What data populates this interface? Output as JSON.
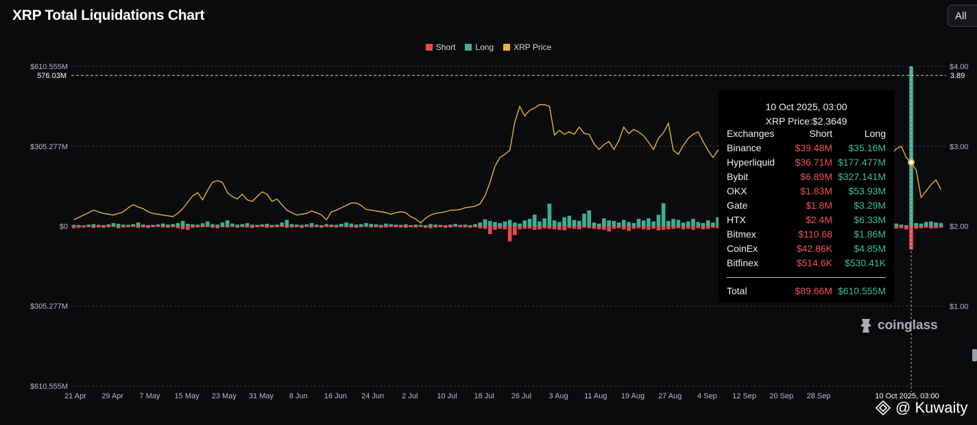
{
  "header": {
    "title": "XRP Total Liquidations Chart",
    "range_label": "All"
  },
  "legend": [
    {
      "label": "Short",
      "color": "#e5484d"
    },
    {
      "label": "Long",
      "color": "#3fae8f"
    },
    {
      "label": "XRP Price",
      "color": "#e8b53c"
    }
  ],
  "chart_data": {
    "type": "bar",
    "left_axis": {
      "ticks": [
        {
          "value": 610.555,
          "label": "$610.555M"
        },
        {
          "value": 305.277,
          "label": "$305.277M"
        },
        {
          "value": 0,
          "label": "$0"
        },
        {
          "value": -305.277,
          "label": "$305.277M"
        },
        {
          "value": -610.555,
          "label": "$610.555M"
        }
      ],
      "range": [
        -610.555,
        610.555
      ],
      "unit": "M USD",
      "marker_label": "576.03M",
      "marker_value": 576.03
    },
    "right_axis": {
      "ticks": [
        {
          "value": 4.0,
          "label": "$4.00"
        },
        {
          "value": 3.0,
          "label": "$3.00"
        },
        {
          "value": 2.0,
          "label": "$2.00"
        },
        {
          "value": 1.0,
          "label": "$1.00"
        }
      ],
      "range": [
        0,
        4
      ],
      "marker_label": "3.89",
      "marker_value": 3.89
    },
    "x_ticks": [
      "21 Apr",
      "29 Apr",
      "7 May",
      "15 May",
      "23 May",
      "31 May",
      "8 Jun",
      "16 Jun",
      "24 Jun",
      "2 Jul",
      "10 Jul",
      "18 Jul",
      "26 Jul",
      "3 Aug",
      "11 Aug",
      "19 Aug",
      "27 Aug",
      "4 Sep",
      "12 Sep",
      "20 Sep",
      "28 Sep",
      "10 Oct 2025, 03:00"
    ],
    "highlight_label": "10 Oct 2025, 03:00",
    "highlight_index": 169,
    "series": [
      {
        "name": "Long",
        "values": [
          5,
          4,
          3,
          6,
          8,
          5,
          4,
          7,
          12,
          9,
          6,
          5,
          8,
          14,
          6,
          4,
          5,
          7,
          10,
          6,
          8,
          12,
          20,
          9,
          7,
          6,
          11,
          18,
          8,
          6,
          14,
          22,
          10,
          6,
          8,
          12,
          6,
          5,
          7,
          9,
          5,
          6,
          14,
          24,
          8,
          6,
          5,
          7,
          12,
          6,
          4,
          8,
          6,
          5,
          9,
          14,
          10,
          6,
          8,
          12,
          9,
          7,
          5,
          10,
          8,
          6,
          5,
          7,
          4,
          6,
          5,
          4,
          8,
          6,
          5,
          4,
          6,
          9,
          5,
          6,
          4,
          8,
          14,
          26,
          20,
          16,
          12,
          18,
          24,
          14,
          10,
          22,
          28,
          44,
          18,
          30,
          86,
          22,
          16,
          34,
          40,
          24,
          20,
          48,
          60,
          14,
          10,
          30,
          22,
          20,
          14,
          24,
          16,
          12,
          28,
          22,
          30,
          18,
          44,
          88,
          20,
          28,
          24,
          14,
          18,
          28,
          16,
          12,
          22,
          14,
          34,
          20,
          12,
          18,
          14,
          16,
          12,
          20,
          26,
          14,
          8,
          10,
          12,
          16,
          18,
          12,
          34,
          16,
          12,
          22,
          10,
          14,
          8,
          18,
          12,
          26,
          14,
          10,
          6,
          8,
          12,
          10,
          14,
          12,
          18,
          8,
          10,
          6,
          4,
          610.555,
          12,
          10,
          16,
          18,
          14,
          12
        ]
      },
      {
        "name": "Short",
        "values": [
          8,
          6,
          5,
          4,
          7,
          5,
          6,
          4,
          3,
          8,
          5,
          4,
          3,
          6,
          5,
          7,
          4,
          3,
          5,
          6,
          4,
          8,
          12,
          14,
          6,
          5,
          4,
          3,
          6,
          8,
          4,
          5,
          3,
          6,
          4,
          5,
          7,
          4,
          3,
          6,
          5,
          4,
          3,
          6,
          5,
          4,
          7,
          3,
          5,
          4,
          6,
          3,
          4,
          5,
          3,
          4,
          5,
          6,
          4,
          3,
          5,
          4,
          6,
          5,
          3,
          4,
          5,
          6,
          4,
          5,
          3,
          6,
          8,
          5,
          4,
          6,
          5,
          3,
          4,
          5,
          6,
          4,
          8,
          10,
          30,
          14,
          10,
          12,
          58,
          34,
          12,
          10,
          9,
          14,
          12,
          8,
          10,
          12,
          14,
          16,
          8,
          10,
          12,
          6,
          8,
          10,
          12,
          14,
          20,
          10,
          8,
          12,
          18,
          10,
          8,
          12,
          14,
          10,
          16,
          14,
          12,
          10,
          8,
          12,
          10,
          14,
          8,
          12,
          10,
          6,
          8,
          12,
          10,
          8,
          6,
          9,
          12,
          14,
          8,
          6,
          10,
          8,
          12,
          9,
          8,
          6,
          10,
          12,
          8,
          6,
          10,
          8,
          6,
          9,
          12,
          8,
          6,
          10,
          9,
          8,
          6,
          12,
          10,
          8,
          6,
          10,
          9,
          8,
          12,
          89.66,
          10,
          8,
          6,
          9,
          8,
          6
        ]
      },
      {
        "name": "XRP Price",
        "values": [
          2.08,
          2.11,
          2.14,
          2.17,
          2.2,
          2.18,
          2.16,
          2.15,
          2.14,
          2.16,
          2.18,
          2.23,
          2.27,
          2.24,
          2.22,
          2.18,
          2.16,
          2.15,
          2.14,
          2.13,
          2.12,
          2.16,
          2.22,
          2.3,
          2.38,
          2.42,
          2.33,
          2.45,
          2.55,
          2.57,
          2.55,
          2.42,
          2.37,
          2.34,
          2.4,
          2.33,
          2.31,
          2.37,
          2.43,
          2.4,
          2.31,
          2.34,
          2.27,
          2.2,
          2.17,
          2.14,
          2.15,
          2.16,
          2.19,
          2.17,
          2.14,
          2.08,
          2.18,
          2.2,
          2.23,
          2.26,
          2.29,
          2.29,
          2.26,
          2.21,
          2.2,
          2.19,
          2.18,
          2.17,
          2.15,
          2.17,
          2.18,
          2.17,
          2.12,
          2.09,
          2.04,
          2.1,
          2.14,
          2.16,
          2.17,
          2.18,
          2.2,
          2.2,
          2.21,
          2.23,
          2.24,
          2.25,
          2.28,
          2.38,
          2.55,
          2.75,
          2.86,
          2.9,
          2.95,
          3.3,
          3.5,
          3.38,
          3.45,
          3.48,
          3.52,
          3.52,
          3.5,
          3.14,
          3.2,
          3.15,
          3.18,
          3.15,
          3.24,
          3.16,
          3.15,
          3.03,
          2.96,
          3.02,
          3.06,
          2.96,
          3.07,
          3.24,
          3.16,
          3.21,
          3.18,
          3.13,
          3.05,
          2.96,
          3.1,
          3.17,
          3.29,
          2.95,
          2.9,
          3.01,
          3.1,
          3.15,
          3.18,
          3.06,
          2.95,
          2.86,
          2.95,
          2.98,
          3.0,
          3.15,
          2.99,
          2.88,
          2.92,
          2.86,
          2.96,
          3.03,
          2.98,
          2.95,
          2.87,
          2.84,
          2.82,
          2.8,
          2.78,
          2.79,
          2.81,
          2.8,
          2.83,
          2.82,
          2.85,
          2.87,
          2.86,
          2.83,
          2.87,
          2.94,
          2.97,
          2.99,
          2.96,
          2.95,
          2.93,
          2.92,
          2.85,
          2.9,
          2.97,
          3.0,
          2.86,
          2.8,
          2.7,
          2.36,
          2.44,
          2.52,
          2.58,
          2.46,
          2.32,
          2.24
        ]
      }
    ]
  },
  "tooltip": {
    "date": "10 Oct 2025, 03:00",
    "price": "XRP Price:$2.3649",
    "header": {
      "exchange": "Exchanges",
      "short": "Short",
      "long": "Long"
    },
    "rows": [
      {
        "exchange": "Binance",
        "short": "$39.48M",
        "long": "$35.16M"
      },
      {
        "exchange": "Hyperliquid",
        "short": "$36.71M",
        "long": "$177.477M"
      },
      {
        "exchange": "Bybit",
        "short": "$6.89M",
        "long": "$327.141M"
      },
      {
        "exchange": "OKX",
        "short": "$1.83M",
        "long": "$53.93M"
      },
      {
        "exchange": "Gate",
        "short": "$1.8M",
        "long": "$3.29M"
      },
      {
        "exchange": "HTX",
        "short": "$2.4M",
        "long": "$6.33M"
      },
      {
        "exchange": "Bitmex",
        "short": "$110.68",
        "long": "$1.86M"
      },
      {
        "exchange": "CoinEx",
        "short": "$42.86K",
        "long": "$4.85M"
      },
      {
        "exchange": "Bitfinex",
        "short": "$514.6K",
        "long": "$530.41K"
      }
    ],
    "total": {
      "label": "Total",
      "short": "$89.66M",
      "long": "$610.555M"
    }
  },
  "watermark": {
    "brand": "coinglass",
    "credit": "@ Kuwaity"
  }
}
